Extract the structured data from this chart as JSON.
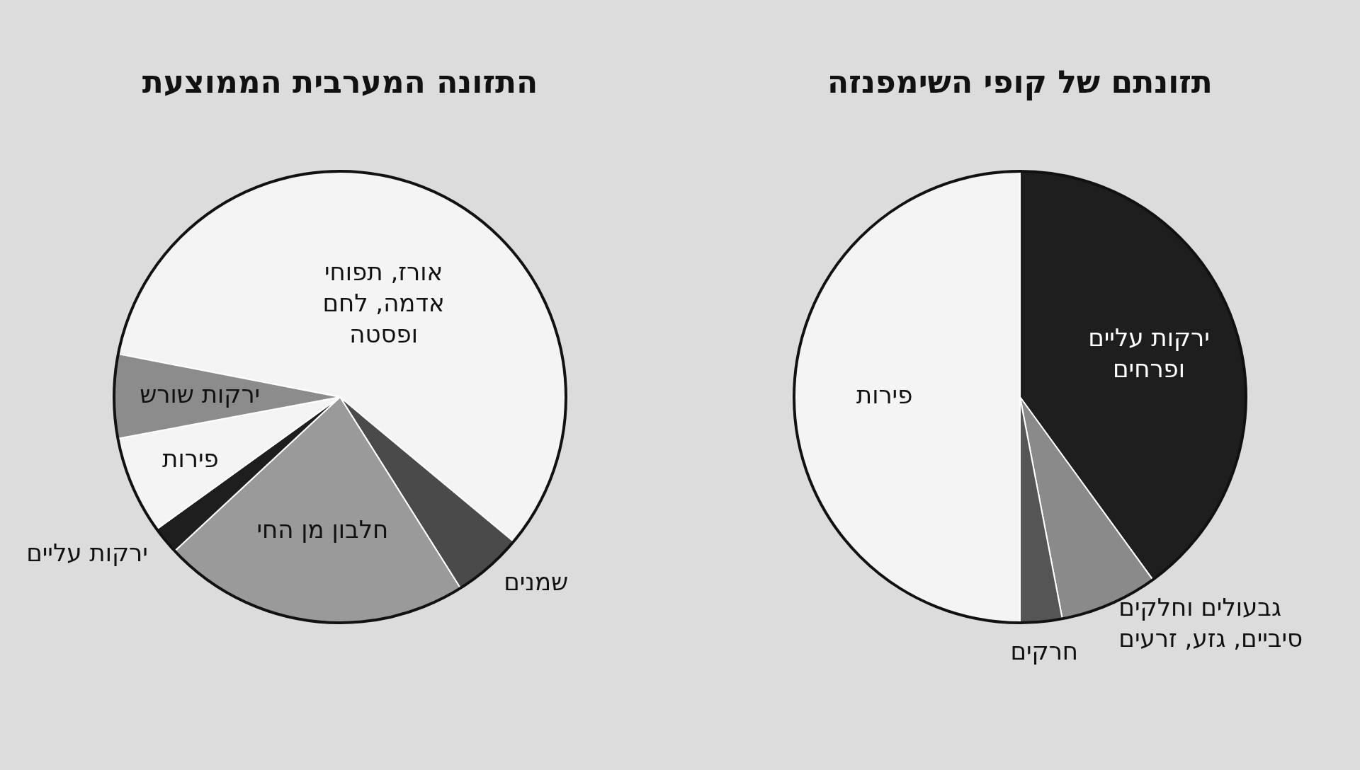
{
  "chart_data": [
    {
      "type": "pie",
      "title": "תזונתם של קופי השימפנזה",
      "categories": [
        "ירקות עליים ופרחים",
        "גבעולים וחלקים סיביים, גזע, זרעים",
        "חרקים",
        "פירות"
      ],
      "values": [
        40,
        7,
        3,
        50
      ],
      "colors": [
        "#1e1e1e",
        "#8a8a8a",
        "#555555",
        "#f4f4f4"
      ]
    },
    {
      "type": "pie",
      "title": "התזונה המערבית הממוצעת",
      "categories": [
        "אורז, תפוחי אדמה, לחם ופסטה",
        "שמנים",
        "חלבון מן החי",
        "ירקות עליים",
        "פירות",
        "ירקות שורש"
      ],
      "values": [
        58,
        5,
        22,
        2,
        7,
        6
      ],
      "colors": [
        "#f4f4f4",
        "#4a4a4a",
        "#9a9a9a",
        "#1e1e1e",
        "#f4f4f4",
        "#8c8c8c"
      ]
    }
  ]
}
